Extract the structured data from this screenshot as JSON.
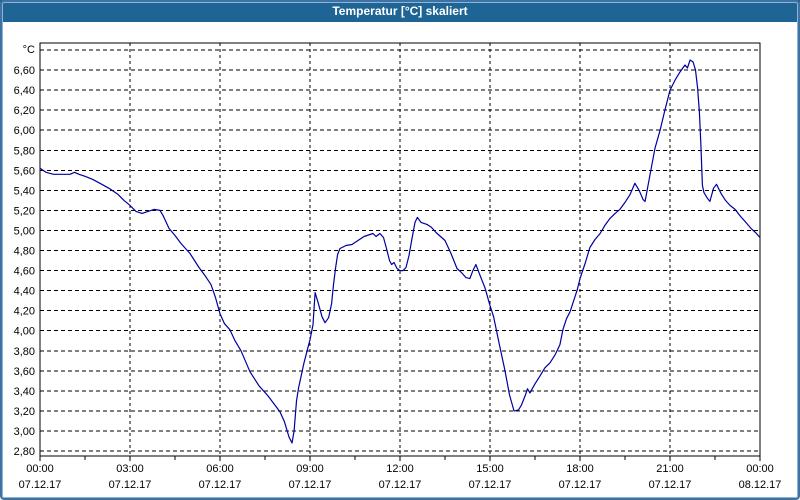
{
  "window": {
    "title": "Temperatur [°C] skaliert",
    "title_bar_color": "#1E6494",
    "border_color": "#3D72A5",
    "background": "#FFFFFF"
  },
  "chart_data": {
    "type": "line",
    "title": "Temperatur [°C] skaliert",
    "grid": true,
    "legend": "none",
    "plot_background": "#FFFFFF",
    "grid_color": "#000000",
    "y_axis": {
      "unit_label": "°C",
      "min": 2.8,
      "max": 6.8,
      "tick_step": 0.2,
      "top_gridline_unlabeled": true,
      "tick_labels": [
        "6,60",
        "6,40",
        "6,20",
        "6,00",
        "5,80",
        "5,60",
        "5,40",
        "5,20",
        "5,00",
        "4,80",
        "4,60",
        "4,40",
        "4,20",
        "4,00",
        "3,80",
        "3,60",
        "3,40",
        "3,20",
        "3,00",
        "2,80"
      ]
    },
    "x_axis": {
      "range_hours": 24,
      "major_tick_hours": 3,
      "minor_tick_hours": 1.5,
      "tick_labels": [
        {
          "time": "00:00",
          "date": "07.12.17"
        },
        {
          "time": "03:00",
          "date": "07.12.17"
        },
        {
          "time": "06:00",
          "date": "07.12.17"
        },
        {
          "time": "09:00",
          "date": "07.12.17"
        },
        {
          "time": "12:00",
          "date": "07.12.17"
        },
        {
          "time": "15:00",
          "date": "07.12.17"
        },
        {
          "time": "18:00",
          "date": "07.12.17"
        },
        {
          "time": "21:00",
          "date": "07.12.17"
        },
        {
          "time": "00:00",
          "date": "08.12.17"
        }
      ]
    },
    "series": [
      {
        "name": "Temperatur",
        "color": "#0000A0",
        "points": [
          [
            0,
            5.62
          ],
          [
            0.2,
            5.58
          ],
          [
            0.45,
            5.56
          ],
          [
            0.75,
            5.56
          ],
          [
            1.0,
            5.56
          ],
          [
            1.15,
            5.58
          ],
          [
            1.3,
            5.56
          ],
          [
            1.5,
            5.54
          ],
          [
            1.75,
            5.51
          ],
          [
            2.0,
            5.47
          ],
          [
            2.3,
            5.42
          ],
          [
            2.6,
            5.36
          ],
          [
            2.8,
            5.3
          ],
          [
            3.0,
            5.25
          ],
          [
            3.2,
            5.19
          ],
          [
            3.4,
            5.17
          ],
          [
            3.6,
            5.19
          ],
          [
            3.8,
            5.21
          ],
          [
            4.0,
            5.2
          ],
          [
            4.1,
            5.15
          ],
          [
            4.3,
            5.02
          ],
          [
            4.5,
            4.95
          ],
          [
            4.7,
            4.87
          ],
          [
            5.0,
            4.77
          ],
          [
            5.3,
            4.63
          ],
          [
            5.5,
            4.55
          ],
          [
            5.7,
            4.46
          ],
          [
            5.85,
            4.33
          ],
          [
            6.0,
            4.17
          ],
          [
            6.15,
            4.07
          ],
          [
            6.33,
            4.01
          ],
          [
            6.5,
            3.9
          ],
          [
            6.7,
            3.8
          ],
          [
            7.0,
            3.59
          ],
          [
            7.3,
            3.45
          ],
          [
            7.6,
            3.35
          ],
          [
            7.85,
            3.25
          ],
          [
            8.0,
            3.19
          ],
          [
            8.15,
            3.09
          ],
          [
            8.3,
            2.94
          ],
          [
            8.4,
            2.88
          ],
          [
            8.47,
            3.0
          ],
          [
            8.55,
            3.3
          ],
          [
            8.62,
            3.43
          ],
          [
            8.8,
            3.68
          ],
          [
            9.0,
            3.91
          ],
          [
            9.1,
            4.06
          ],
          [
            9.17,
            4.38
          ],
          [
            9.28,
            4.27
          ],
          [
            9.4,
            4.14
          ],
          [
            9.5,
            4.08
          ],
          [
            9.62,
            4.13
          ],
          [
            9.72,
            4.27
          ],
          [
            9.78,
            4.45
          ],
          [
            9.85,
            4.62
          ],
          [
            9.92,
            4.76
          ],
          [
            10.0,
            4.82
          ],
          [
            10.2,
            4.85
          ],
          [
            10.4,
            4.86
          ],
          [
            10.6,
            4.9
          ],
          [
            10.8,
            4.94
          ],
          [
            11.0,
            4.96
          ],
          [
            11.1,
            4.97
          ],
          [
            11.2,
            4.94
          ],
          [
            11.33,
            4.97
          ],
          [
            11.45,
            4.93
          ],
          [
            11.55,
            4.82
          ],
          [
            11.65,
            4.7
          ],
          [
            11.72,
            4.66
          ],
          [
            11.8,
            4.68
          ],
          [
            11.9,
            4.62
          ],
          [
            12.0,
            4.6
          ],
          [
            12.1,
            4.6
          ],
          [
            12.2,
            4.63
          ],
          [
            12.3,
            4.75
          ],
          [
            12.4,
            4.92
          ],
          [
            12.5,
            5.08
          ],
          [
            12.58,
            5.13
          ],
          [
            12.7,
            5.08
          ],
          [
            12.9,
            5.06
          ],
          [
            13.05,
            5.03
          ],
          [
            13.2,
            4.98
          ],
          [
            13.35,
            4.94
          ],
          [
            13.5,
            4.9
          ],
          [
            13.7,
            4.77
          ],
          [
            13.9,
            4.62
          ],
          [
            14.05,
            4.58
          ],
          [
            14.2,
            4.53
          ],
          [
            14.33,
            4.52
          ],
          [
            14.43,
            4.6
          ],
          [
            14.53,
            4.66
          ],
          [
            14.67,
            4.55
          ],
          [
            14.83,
            4.43
          ],
          [
            15.0,
            4.25
          ],
          [
            15.12,
            4.14
          ],
          [
            15.3,
            3.88
          ],
          [
            15.5,
            3.6
          ],
          [
            15.65,
            3.36
          ],
          [
            15.8,
            3.2
          ],
          [
            15.95,
            3.21
          ],
          [
            16.05,
            3.26
          ],
          [
            16.17,
            3.35
          ],
          [
            16.25,
            3.42
          ],
          [
            16.33,
            3.38
          ],
          [
            16.5,
            3.47
          ],
          [
            16.67,
            3.55
          ],
          [
            16.83,
            3.63
          ],
          [
            17.0,
            3.68
          ],
          [
            17.17,
            3.76
          ],
          [
            17.33,
            3.86
          ],
          [
            17.43,
            4.01
          ],
          [
            17.55,
            4.12
          ],
          [
            17.67,
            4.19
          ],
          [
            17.78,
            4.29
          ],
          [
            17.9,
            4.4
          ],
          [
            18.0,
            4.52
          ],
          [
            18.17,
            4.67
          ],
          [
            18.33,
            4.83
          ],
          [
            18.5,
            4.91
          ],
          [
            18.67,
            4.97
          ],
          [
            18.83,
            5.05
          ],
          [
            19.0,
            5.12
          ],
          [
            19.17,
            5.17
          ],
          [
            19.33,
            5.21
          ],
          [
            19.5,
            5.28
          ],
          [
            19.67,
            5.36
          ],
          [
            19.83,
            5.47
          ],
          [
            19.97,
            5.4
          ],
          [
            20.1,
            5.31
          ],
          [
            20.17,
            5.29
          ],
          [
            20.33,
            5.55
          ],
          [
            20.5,
            5.82
          ],
          [
            20.67,
            6.0
          ],
          [
            20.83,
            6.2
          ],
          [
            21.0,
            6.4
          ],
          [
            21.17,
            6.5
          ],
          [
            21.33,
            6.58
          ],
          [
            21.5,
            6.65
          ],
          [
            21.58,
            6.62
          ],
          [
            21.67,
            6.7
          ],
          [
            21.77,
            6.68
          ],
          [
            21.85,
            6.6
          ],
          [
            21.92,
            6.42
          ],
          [
            21.98,
            6.18
          ],
          [
            22.03,
            5.85
          ],
          [
            22.08,
            5.45
          ],
          [
            22.13,
            5.38
          ],
          [
            22.25,
            5.32
          ],
          [
            22.33,
            5.29
          ],
          [
            22.45,
            5.42
          ],
          [
            22.55,
            5.46
          ],
          [
            22.7,
            5.37
          ],
          [
            22.85,
            5.3
          ],
          [
            23.0,
            5.25
          ],
          [
            23.17,
            5.21
          ],
          [
            23.35,
            5.14
          ],
          [
            23.5,
            5.09
          ],
          [
            23.7,
            5.02
          ],
          [
            23.85,
            4.98
          ],
          [
            24.0,
            4.93
          ]
        ]
      }
    ]
  }
}
